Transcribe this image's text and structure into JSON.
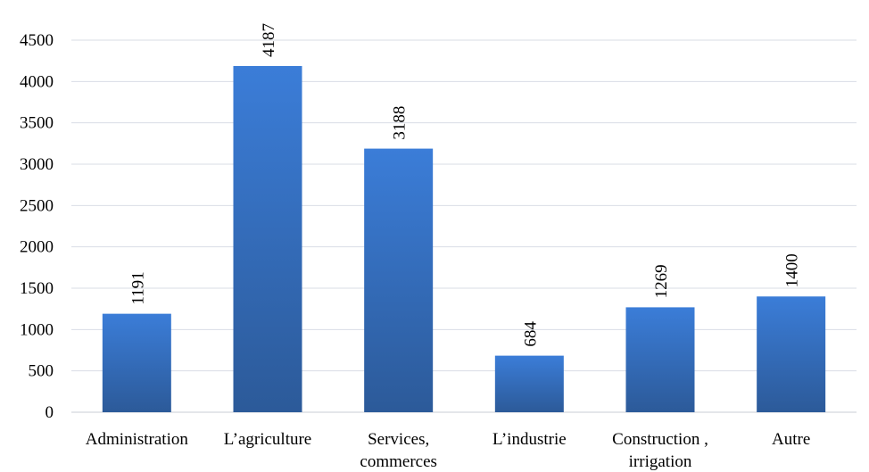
{
  "chart_data": {
    "type": "bar",
    "title": "",
    "xlabel": "",
    "ylabel": "",
    "categories": [
      [
        "Administration"
      ],
      [
        "L’agriculture"
      ],
      [
        "Services,",
        "commerces"
      ],
      [
        "L’industrie"
      ],
      [
        "Construction ,",
        "irrigation"
      ],
      [
        "Autre"
      ]
    ],
    "values": [
      1191,
      4187,
      3188,
      684,
      1269,
      1400
    ],
    "data_labels": [
      "1191",
      "4187",
      "3188",
      "684",
      "1269",
      "1400"
    ],
    "ylim": [
      0,
      4500
    ],
    "yticks": [
      0,
      500,
      1000,
      1500,
      2000,
      2500,
      3000,
      3500,
      4000,
      4500
    ],
    "ytick_labels": [
      "0",
      "500",
      "1000",
      "1500",
      "2000",
      "2500",
      "3000",
      "3500",
      "4000",
      "4500"
    ],
    "grid": true,
    "legend": "none",
    "colors": {
      "bar_top": "#3b7dd8",
      "bar_bottom": "#2c5a99"
    }
  }
}
